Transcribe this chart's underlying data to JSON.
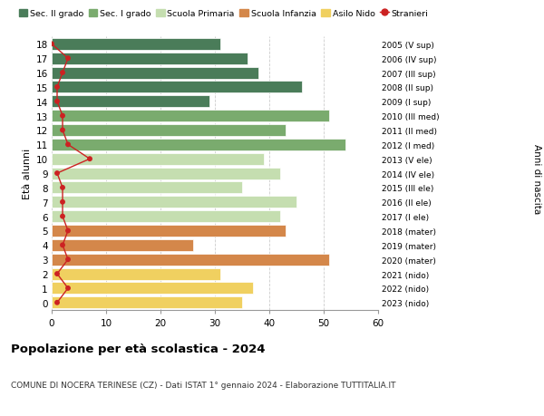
{
  "ages": [
    18,
    17,
    16,
    15,
    14,
    13,
    12,
    11,
    10,
    9,
    8,
    7,
    6,
    5,
    4,
    3,
    2,
    1,
    0
  ],
  "right_labels": [
    "2005 (V sup)",
    "2006 (IV sup)",
    "2007 (III sup)",
    "2008 (II sup)",
    "2009 (I sup)",
    "2010 (III med)",
    "2011 (II med)",
    "2012 (I med)",
    "2013 (V ele)",
    "2014 (IV ele)",
    "2015 (III ele)",
    "2016 (II ele)",
    "2017 (I ele)",
    "2018 (mater)",
    "2019 (mater)",
    "2020 (mater)",
    "2021 (nido)",
    "2022 (nido)",
    "2023 (nido)"
  ],
  "bar_values": [
    31,
    36,
    38,
    46,
    29,
    51,
    43,
    54,
    39,
    42,
    35,
    45,
    42,
    43,
    26,
    51,
    31,
    37,
    35
  ],
  "bar_colors": [
    "#4a7c59",
    "#4a7c59",
    "#4a7c59",
    "#4a7c59",
    "#4a7c59",
    "#7aab6e",
    "#7aab6e",
    "#7aab6e",
    "#c5deb0",
    "#c5deb0",
    "#c5deb0",
    "#c5deb0",
    "#c5deb0",
    "#d4874a",
    "#d4874a",
    "#d4874a",
    "#f0d060",
    "#f0d060",
    "#f0d060"
  ],
  "stranieri_values": [
    0,
    3,
    2,
    1,
    1,
    2,
    2,
    3,
    7,
    1,
    2,
    2,
    2,
    3,
    2,
    3,
    1,
    3,
    1
  ],
  "stranieri_color": "#cc2222",
  "legend_labels": [
    "Sec. II grado",
    "Sec. I grado",
    "Scuola Primaria",
    "Scuola Infanzia",
    "Asilo Nido",
    "Stranieri"
  ],
  "legend_colors": [
    "#4a7c59",
    "#7aab6e",
    "#c5deb0",
    "#d4874a",
    "#f0d060",
    "#cc2222"
  ],
  "ylabel_left": "Età alunni",
  "ylabel_right": "Anni di nascita",
  "title": "Popolazione per età scolastica - 2024",
  "subtitle": "COMUNE DI NOCERA TERINESE (CZ) - Dati ISTAT 1° gennaio 2024 - Elaborazione TUTTITALIA.IT",
  "xlim": [
    0,
    60
  ],
  "xticks": [
    0,
    10,
    20,
    30,
    40,
    50,
    60
  ],
  "background_color": "#ffffff",
  "grid_color": "#cccccc"
}
